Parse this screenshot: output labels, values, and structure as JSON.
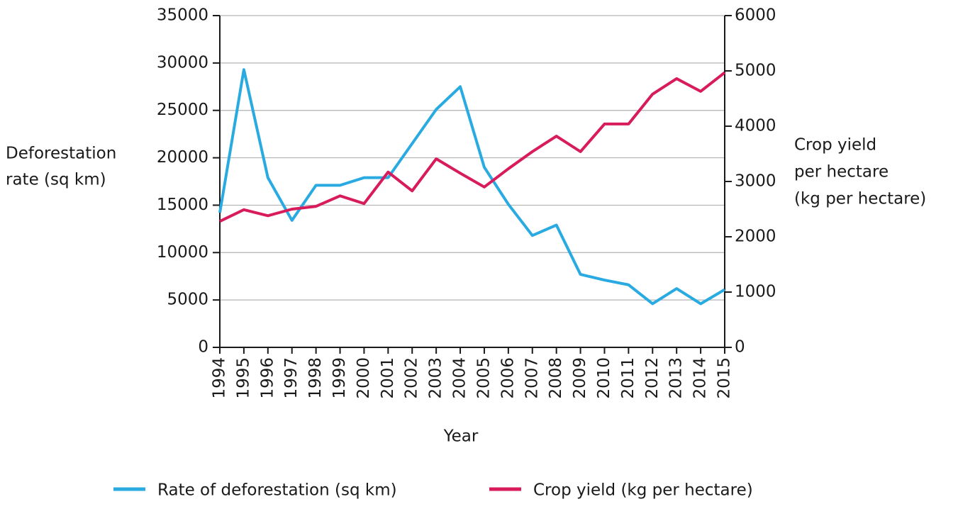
{
  "chart_data": {
    "type": "line",
    "x": [
      1994,
      1995,
      1996,
      1997,
      1998,
      1999,
      2000,
      2001,
      2002,
      2003,
      2004,
      2005,
      2006,
      2007,
      2008,
      2009,
      2010,
      2011,
      2012,
      2013,
      2014,
      2015
    ],
    "xlim": [
      1994,
      2015
    ],
    "xlabel": "Year",
    "ylabel": [
      "Deforestation",
      "rate (sq km)"
    ],
    "y2label": [
      "Crop yield",
      "per hectare",
      "(kg per hectare)"
    ],
    "ylim": [
      0,
      35000
    ],
    "yticks": [
      0,
      5000,
      10000,
      15000,
      20000,
      25000,
      30000,
      35000
    ],
    "y2lim": [
      0,
      6000
    ],
    "y2ticks": [
      0,
      1000,
      2000,
      3000,
      4000,
      5000,
      6000
    ],
    "grid": true,
    "series": [
      {
        "name": "Rate of deforestation (sq km)",
        "color": "#29abe2",
        "values": [
          14200,
          29300,
          17900,
          13400,
          17100,
          17100,
          17900,
          17900,
          21500,
          25100,
          27500,
          19000,
          15100,
          11800,
          12900,
          7700,
          7100,
          6600,
          4600,
          6200,
          4600,
          6100
        ]
      },
      {
        "name": "Crop yield (kg per hectare)",
        "color": "#d81b5a",
        "axis": "y2",
        "values": [
          2280,
          2490,
          2380,
          2500,
          2550,
          2740,
          2600,
          3170,
          2830,
          3410,
          3150,
          2900,
          3230,
          3540,
          3820,
          3540,
          4040,
          4040,
          4580,
          4860,
          4630,
          4970
        ]
      }
    ]
  }
}
